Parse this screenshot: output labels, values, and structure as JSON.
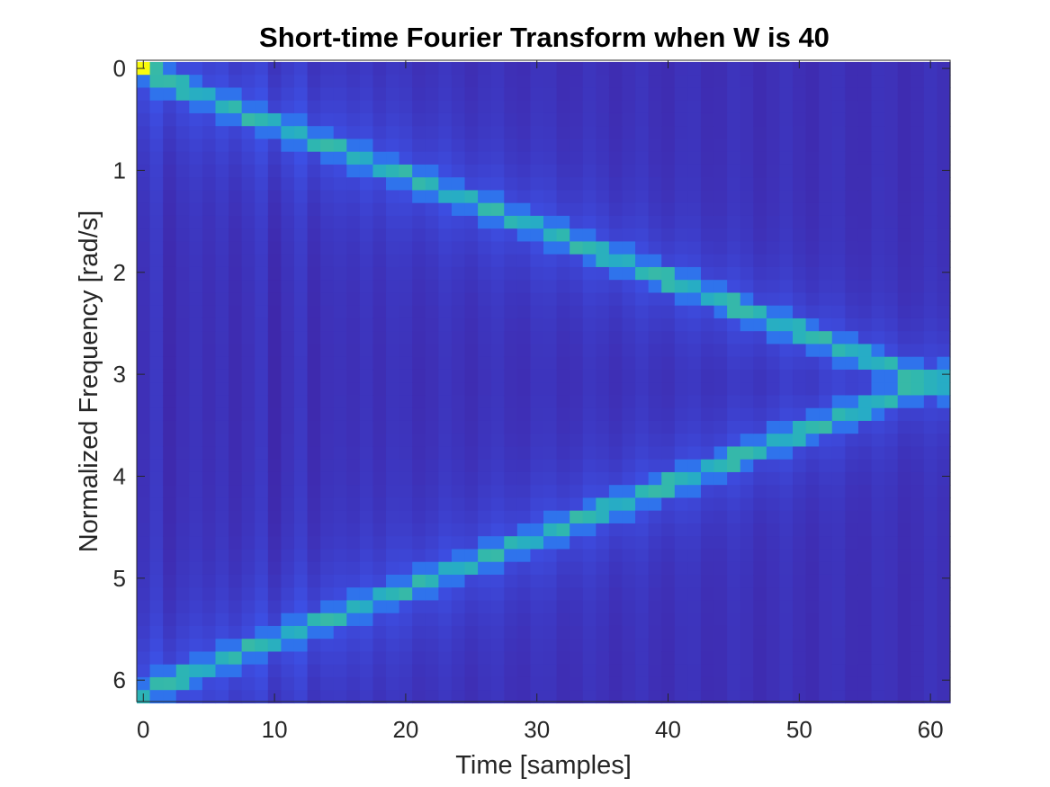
{
  "chart_data": {
    "type": "heatmap",
    "title": "Short-time Fourier Transform when W is 40",
    "xlabel": "Time [samples]",
    "ylabel": "Normalized Frequency [rad/s]",
    "xlim": [
      -0.5,
      61.5
    ],
    "ylim": [
      -0.08,
      6.21
    ],
    "y_direction": "reversed",
    "xticks": [
      0,
      10,
      20,
      30,
      40,
      50,
      60
    ],
    "xtick_labels": [
      "0",
      "10",
      "20",
      "30",
      "40",
      "50",
      "60"
    ],
    "yticks": [
      0,
      1,
      2,
      3,
      4,
      5,
      6
    ],
    "ytick_labels": [
      "0",
      "1",
      "2",
      "3",
      "4",
      "5",
      "6"
    ],
    "time_samples": 62,
    "frequency_bins": 50,
    "frequency_max": 6.16,
    "colormap": "parula",
    "colors": {
      "low": "#3e26a8",
      "mid_low": "#3c58f0",
      "mid": "#2eb7b0",
      "high": "#f9fb0e"
    },
    "ridge": {
      "description_units": "rad/s",
      "start_frequency": 0.04,
      "slope_per_sample": 0.0508,
      "meets_at_time": 61,
      "meets_at_frequency": 3.1
    },
    "peak": {
      "time": 0,
      "frequency": 0,
      "value": 1.0
    },
    "grid": false
  }
}
